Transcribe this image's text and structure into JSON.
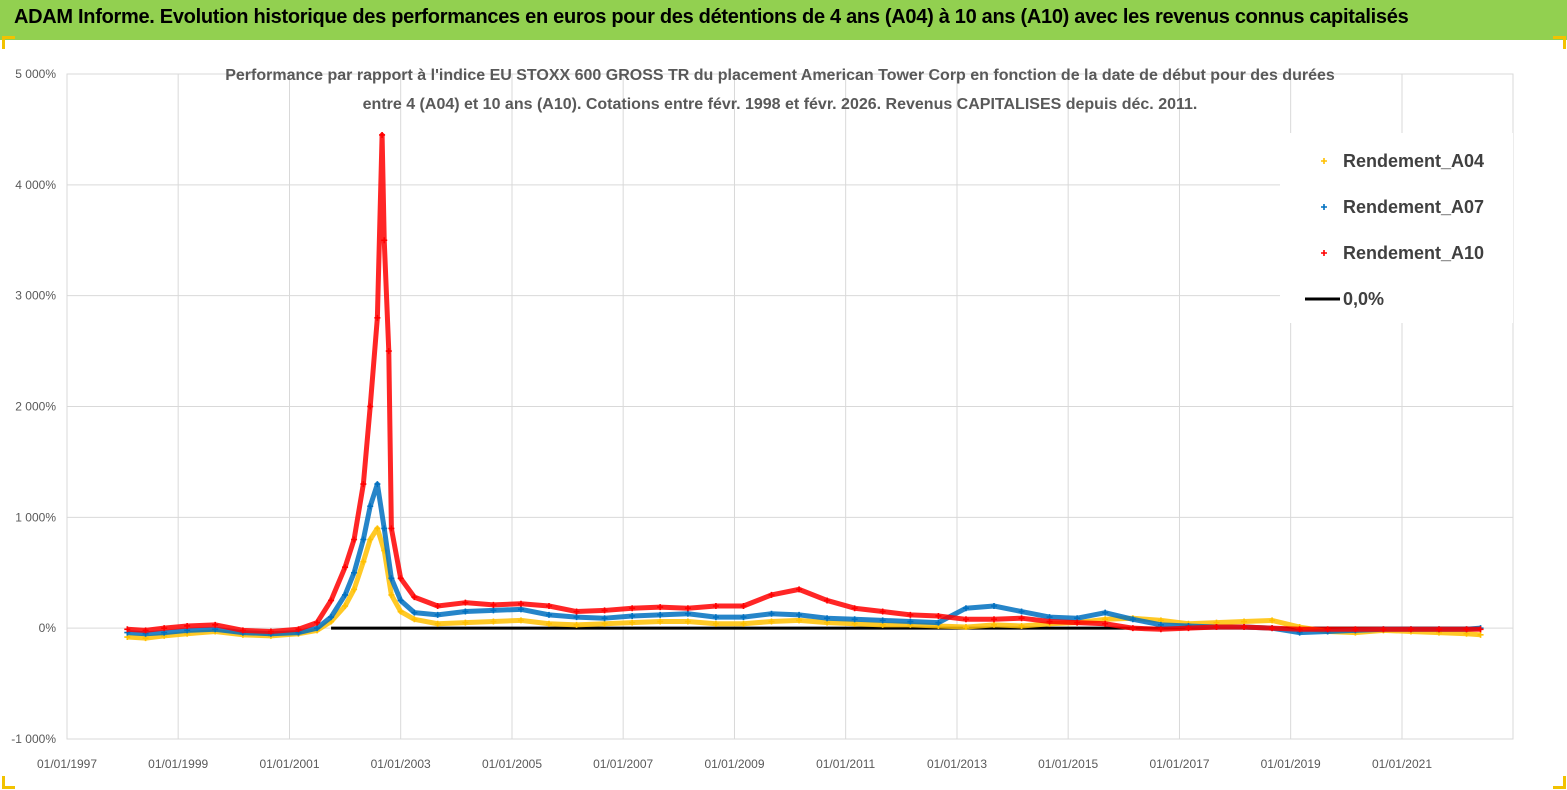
{
  "banner": {
    "title": "ADAM Informe. Evolution historique des performances en euros pour des détentions de 4 ans (A04) à 10 ans (A10) avec les revenus connus capitalisés",
    "background": "#92d050"
  },
  "chart_data": {
    "type": "scatter",
    "title_line1": "Performance par rapport à l'indice EU STOXX 600 GROSS TR  du placement American Tower Corp en fonction de la date de début pour des durées",
    "title_line2": "entre 4 (A04) et 10 ans (A10). Cotations entre févr. 1998 et févr. 2026. Revenus CAPITALISES depuis déc. 2011.",
    "xlabel": "",
    "ylabel": "",
    "x_range": [
      "1997-01-01",
      "2022-12-31"
    ],
    "ylim": [
      -1000,
      5000
    ],
    "y_unit": "%",
    "grid": true,
    "legend_position": "top-right",
    "x_ticks": [
      "01/01/1997",
      "01/01/1999",
      "01/01/2001",
      "01/01/2003",
      "01/01/2005",
      "01/01/2007",
      "01/01/2009",
      "01/01/2011",
      "01/01/2013",
      "01/01/2015",
      "01/01/2017",
      "01/01/2019",
      "01/01/2021"
    ],
    "y_ticks": [
      "-1 000%",
      "0%",
      "1 000%",
      "2 000%",
      "3 000%",
      "4 000%",
      "5 000%"
    ],
    "y_tick_values": [
      -1000,
      0,
      1000,
      2000,
      3000,
      4000,
      5000
    ],
    "series": [
      {
        "name": "Rendement_A04",
        "color": "#ffc000",
        "marker": "plus",
        "x": [
          "1998-02-01",
          "1998-06-01",
          "1998-10-01",
          "1999-03-01",
          "1999-09-01",
          "2000-03-01",
          "2000-09-01",
          "2001-03-01",
          "2001-07-01",
          "2001-10-01",
          "2002-01-01",
          "2002-03-01",
          "2002-05-01",
          "2002-06-15",
          "2002-08-01",
          "2002-09-15",
          "2002-11-01",
          "2003-01-01",
          "2003-04-01",
          "2003-09-01",
          "2004-03-01",
          "2004-09-01",
          "2005-03-01",
          "2005-09-01",
          "2006-03-01",
          "2006-09-01",
          "2007-03-01",
          "2007-09-01",
          "2008-03-01",
          "2008-09-01",
          "2009-03-01",
          "2009-09-01",
          "2010-03-01",
          "2010-09-01",
          "2011-03-01",
          "2011-09-01",
          "2012-03-01",
          "2012-09-01",
          "2013-03-01",
          "2013-09-01",
          "2014-03-01",
          "2014-09-01",
          "2015-03-01",
          "2015-09-01",
          "2016-03-01",
          "2016-09-01",
          "2017-03-01",
          "2017-09-01",
          "2018-03-01",
          "2018-09-01",
          "2019-03-01",
          "2019-09-01",
          "2020-03-01",
          "2020-09-01",
          "2021-03-01",
          "2021-09-01",
          "2022-03-01",
          "2022-06-01"
        ],
        "y": [
          -80,
          -90,
          -70,
          -50,
          -30,
          -60,
          -70,
          -50,
          -20,
          60,
          200,
          350,
          600,
          800,
          900,
          700,
          300,
          150,
          80,
          40,
          50,
          60,
          70,
          40,
          30,
          40,
          50,
          60,
          60,
          40,
          40,
          60,
          70,
          50,
          40,
          30,
          30,
          20,
          10,
          30,
          20,
          40,
          50,
          80,
          90,
          70,
          40,
          50,
          60,
          70,
          10,
          -30,
          -40,
          -20,
          -30,
          -40,
          -50,
          -60
        ]
      },
      {
        "name": "Rendement_A07",
        "color": "#0070c0",
        "marker": "plus",
        "x": [
          "1998-02-01",
          "1998-06-01",
          "1998-10-01",
          "1999-03-01",
          "1999-09-01",
          "2000-03-01",
          "2000-09-01",
          "2001-03-01",
          "2001-07-01",
          "2001-10-01",
          "2002-01-01",
          "2002-03-01",
          "2002-05-01",
          "2002-06-15",
          "2002-08-01",
          "2002-09-15",
          "2002-11-01",
          "2003-01-01",
          "2003-04-01",
          "2003-09-01",
          "2004-03-01",
          "2004-09-01",
          "2005-03-01",
          "2005-09-01",
          "2006-03-01",
          "2006-09-01",
          "2007-03-01",
          "2007-09-01",
          "2008-03-01",
          "2008-09-01",
          "2009-03-01",
          "2009-09-01",
          "2010-03-01",
          "2010-09-01",
          "2011-03-01",
          "2011-09-01",
          "2012-03-01",
          "2012-09-01",
          "2013-03-01",
          "2013-09-01",
          "2014-03-01",
          "2014-09-01",
          "2015-03-01",
          "2015-09-01",
          "2016-03-01",
          "2016-09-01",
          "2017-03-01",
          "2017-09-01",
          "2018-03-01",
          "2018-09-01",
          "2019-03-01",
          "2019-09-01",
          "2020-03-01",
          "2020-09-01",
          "2021-03-01",
          "2021-09-01",
          "2022-03-01",
          "2022-06-01"
        ],
        "y": [
          -40,
          -50,
          -40,
          -20,
          -10,
          -40,
          -50,
          -40,
          0,
          100,
          300,
          500,
          800,
          1100,
          1300,
          900,
          450,
          250,
          140,
          120,
          150,
          160,
          170,
          120,
          100,
          90,
          110,
          120,
          130,
          100,
          100,
          130,
          120,
          90,
          80,
          70,
          60,
          50,
          180,
          200,
          150,
          100,
          90,
          140,
          80,
          30,
          20,
          10,
          10,
          0,
          -40,
          -30,
          -20,
          -10,
          -10,
          -10,
          -10,
          0
        ]
      },
      {
        "name": "Rendement_A10",
        "color": "#ff0000",
        "marker": "plus",
        "x": [
          "1998-02-01",
          "1998-06-01",
          "1998-10-01",
          "1999-03-01",
          "1999-09-01",
          "2000-03-01",
          "2000-09-01",
          "2001-03-01",
          "2001-07-01",
          "2001-10-01",
          "2002-01-01",
          "2002-03-01",
          "2002-05-01",
          "2002-06-15",
          "2002-08-01",
          "2002-09-01",
          "2002-09-15",
          "2002-10-15",
          "2002-11-01",
          "2003-01-01",
          "2003-04-01",
          "2003-09-01",
          "2004-03-01",
          "2004-09-01",
          "2005-03-01",
          "2005-09-01",
          "2006-03-01",
          "2006-09-01",
          "2007-03-01",
          "2007-09-01",
          "2008-03-01",
          "2008-09-01",
          "2009-03-01",
          "2009-09-01",
          "2010-03-01",
          "2010-09-01",
          "2011-03-01",
          "2011-09-01",
          "2012-03-01",
          "2012-09-01",
          "2013-03-01",
          "2013-09-01",
          "2014-03-01",
          "2014-09-01",
          "2015-03-01",
          "2015-09-01",
          "2016-03-01",
          "2016-09-01",
          "2017-03-01",
          "2017-09-01",
          "2018-03-01",
          "2018-09-01",
          "2019-03-01",
          "2019-09-01",
          "2020-03-01",
          "2020-09-01",
          "2021-03-01",
          "2021-09-01",
          "2022-03-01",
          "2022-06-01"
        ],
        "y": [
          -10,
          -20,
          0,
          20,
          30,
          -20,
          -30,
          -10,
          50,
          250,
          550,
          800,
          1300,
          2000,
          2800,
          4450,
          3500,
          2500,
          900,
          450,
          280,
          200,
          230,
          210,
          220,
          200,
          150,
          160,
          180,
          190,
          180,
          200,
          200,
          300,
          350,
          250,
          180,
          150,
          120,
          110,
          80,
          80,
          90,
          60,
          50,
          40,
          0,
          -10,
          0,
          10,
          10,
          0,
          -10,
          -10,
          -10,
          -10,
          -10,
          -10,
          -10,
          -10
        ]
      },
      {
        "name": "0,0%",
        "color": "#000000",
        "marker": "line",
        "x": [
          "2001-10-01",
          "2022-06-01"
        ],
        "y": [
          0,
          0
        ]
      }
    ]
  }
}
